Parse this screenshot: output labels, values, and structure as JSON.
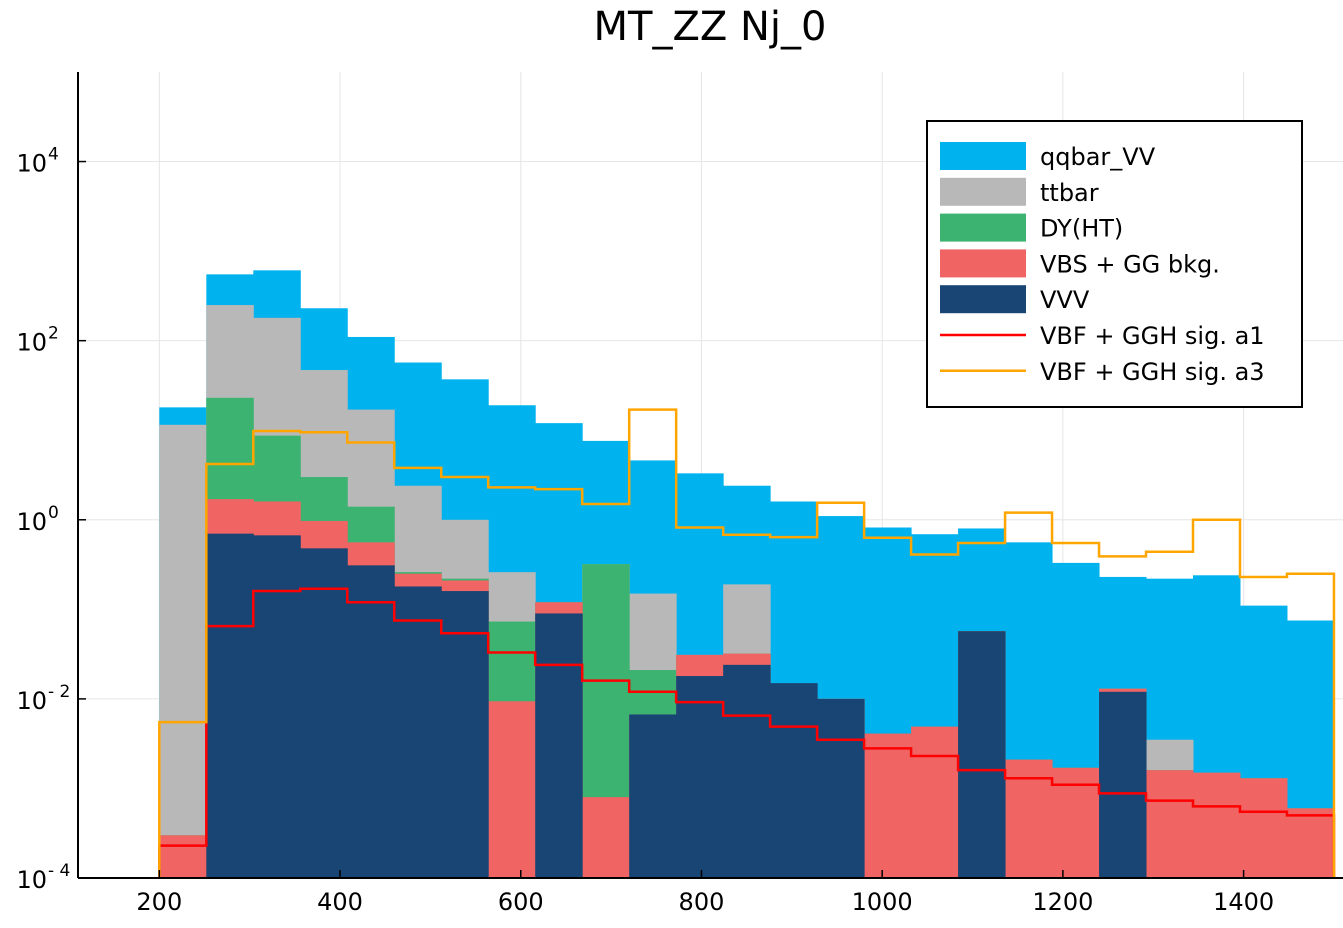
{
  "chart_data": {
    "type": "histogram_stacked",
    "title": "MT_ZZ Nj_0",
    "xlabel": "",
    "ylabel": "",
    "yscale": "log10",
    "xlim": [
      110,
      1510
    ],
    "ylim": [
      0.0001,
      100000
    ],
    "grid": true,
    "legend_position": "top-right",
    "x_ticks": [
      200,
      400,
      600,
      800,
      1000,
      1200,
      1400
    ],
    "y_ticks": [
      {
        "value": 0.0001,
        "base": "10",
        "exp": "- 4"
      },
      {
        "value": 0.01,
        "base": "10",
        "exp": "- 2"
      },
      {
        "value": 1,
        "base": "10",
        "exp": "0"
      },
      {
        "value": 100,
        "base": "10",
        "exp": "2"
      },
      {
        "value": 10000,
        "base": "10",
        "exp": "4"
      }
    ],
    "bin_edges": [
      200,
      252,
      304,
      356,
      408,
      460,
      512,
      564,
      616,
      668,
      720,
      772,
      824,
      876,
      928,
      980,
      1032,
      1084,
      1136,
      1188,
      1240,
      1292,
      1344,
      1396,
      1448,
      1500
    ],
    "stacked_series": [
      {
        "name": "qqbar_VV",
        "color": "#00b2ee",
        "top": [
          18,
          550,
          610,
          230,
          110,
          57,
          37,
          19,
          12,
          7.6,
          4.6,
          3.3,
          2.4,
          1.6,
          1.1,
          0.82,
          0.69,
          0.8,
          0.56,
          0.33,
          0.23,
          0.22,
          0.24,
          0.11,
          0.075
        ]
      },
      {
        "name": "ttbar",
        "color": "#b8b8b8",
        "top": [
          11.5,
          250,
          180,
          47,
          17,
          2.4,
          1.0,
          0.26,
          0.12,
          0.32,
          0.15,
          0.031,
          0.19,
          0.011,
          0.01,
          0.0041,
          0.0049,
          0.057,
          0.0021,
          0.0017,
          0.013,
          0.0035,
          0.0015,
          0.0013,
          0.0006
        ]
      },
      {
        "name": "DY(HT)",
        "color": "#3cb371",
        "top": [
          0.0003,
          23,
          8.7,
          3,
          1.4,
          0.26,
          0.22,
          0.073,
          0.12,
          0.32,
          0.021,
          0.031,
          0.032,
          0.011,
          0.01,
          0.0041,
          0.0049,
          0.057,
          0.0021,
          0.0017,
          0.013,
          0.0016,
          0.0015,
          0.0013,
          0.0006
        ]
      },
      {
        "name": "VBS + GG bkg.",
        "color": "#f06464",
        "top": [
          0.0003,
          1.7,
          1.6,
          0.97,
          0.56,
          0.25,
          0.21,
          0.0094,
          0.12,
          0.0008,
          0.0067,
          0.031,
          0.032,
          0.011,
          0.01,
          0.0041,
          0.0049,
          0.057,
          0.0021,
          0.0017,
          0.013,
          0.0016,
          0.0015,
          0.0013,
          0.0006
        ]
      },
      {
        "name": "VVV",
        "color": "#194574",
        "top": [
          0,
          0.7,
          0.67,
          0.48,
          0.31,
          0.18,
          0.16,
          0,
          0.09,
          0,
          0.0067,
          0.018,
          0.024,
          0.015,
          0.01,
          0,
          0,
          0.057,
          0,
          0,
          0.012,
          0,
          0,
          0,
          0
        ]
      }
    ],
    "line_series": [
      {
        "name": "VBF + GGH sig. a1",
        "color": "#ff0000",
        "values": [
          0.00023,
          0.065,
          0.16,
          0.17,
          0.12,
          0.075,
          0.054,
          0.033,
          0.024,
          0.016,
          0.012,
          0.0092,
          0.0065,
          0.0049,
          0.0035,
          0.0028,
          0.0023,
          0.0016,
          0.0013,
          0.0011,
          0.00088,
          0.00073,
          0.00063,
          0.00055,
          0.0005
        ]
      },
      {
        "name": "VBF + GGH sig. a3",
        "color": "#ffa500",
        "values": [
          0.0055,
          4.2,
          9.8,
          9.5,
          7.3,
          3.8,
          3.0,
          2.3,
          2.2,
          1.5,
          17,
          0.82,
          0.68,
          0.64,
          1.55,
          0.63,
          0.41,
          0.55,
          1.2,
          0.55,
          0.39,
          0.44,
          1.0,
          0.23,
          0.25
        ]
      }
    ]
  }
}
